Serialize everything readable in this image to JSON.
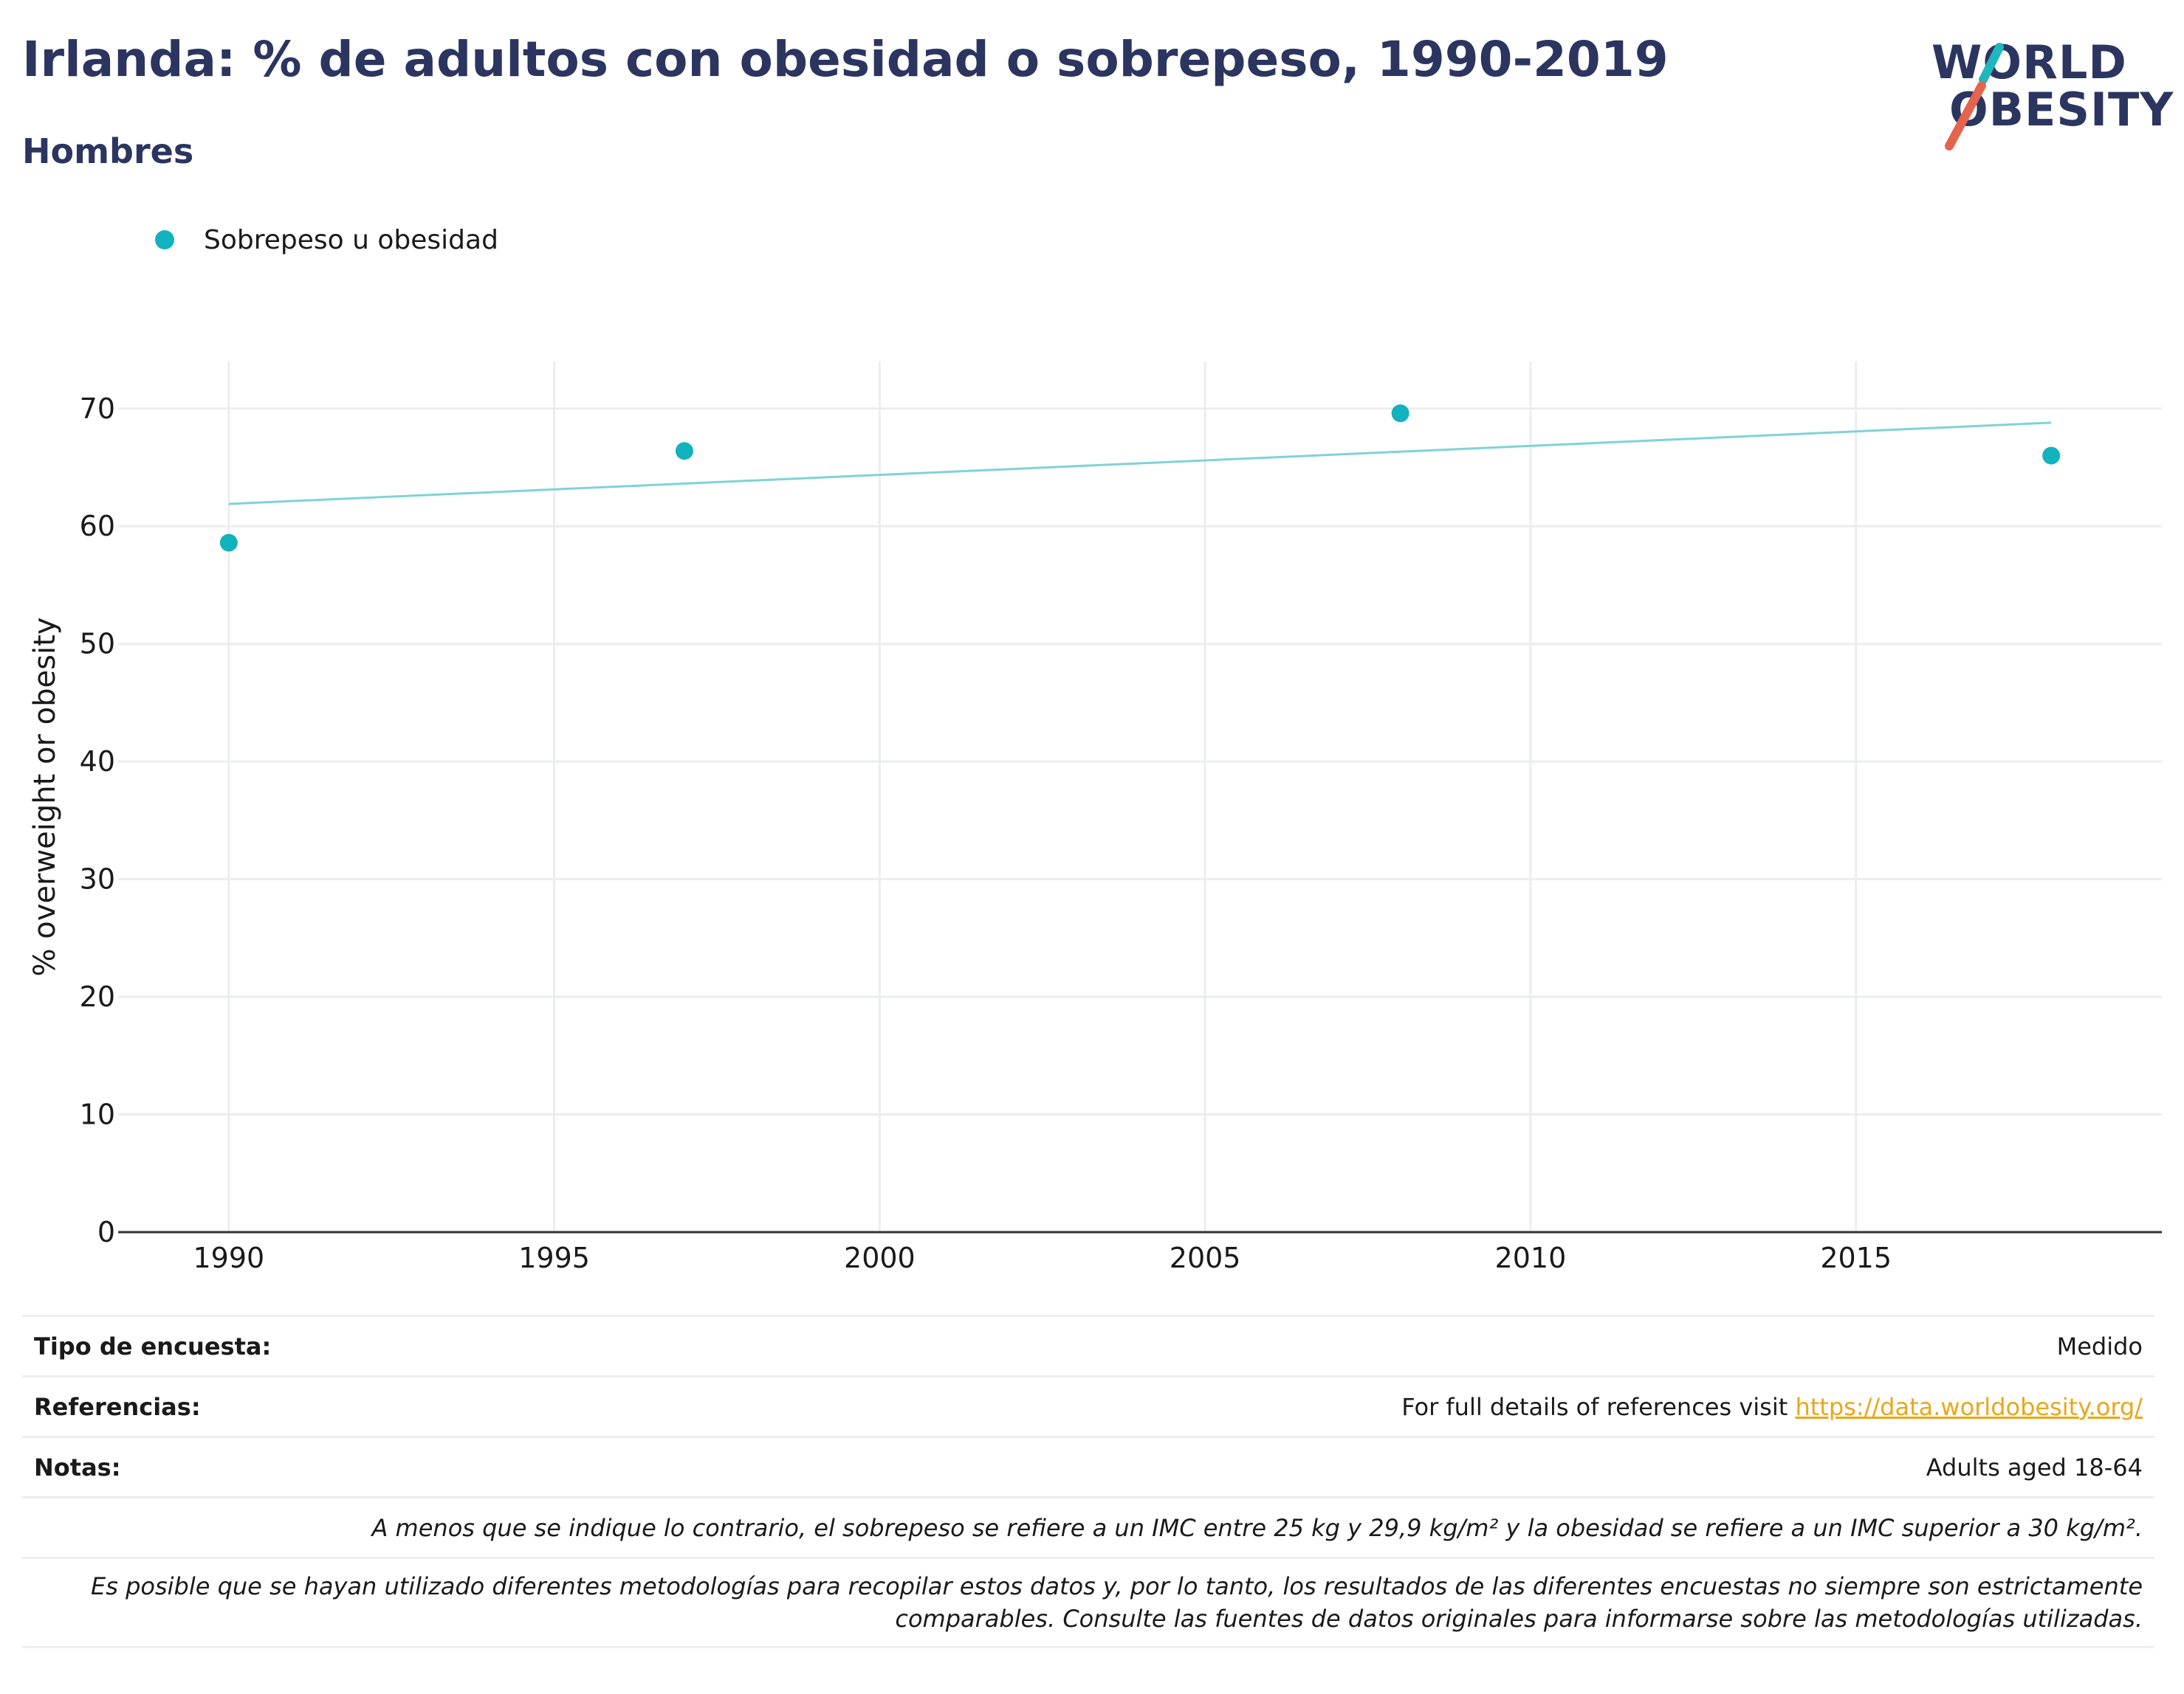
{
  "header": {
    "title": "Irlanda: % de adultos con obesidad o sobrepeso, 1990-2019",
    "subtitle": "Hombres"
  },
  "logo": {
    "line1": "WORLD",
    "line2": "OBESITY",
    "accent_teal": "#1fb6bd",
    "accent_red": "#e4644d"
  },
  "colors": {
    "title": "#2b3560",
    "series": "#12b2be",
    "trend": "#7fd3d6",
    "link": "#e9a719"
  },
  "legend": {
    "items": [
      {
        "label": "Sobrepeso u obesidad",
        "color": "#12b2be"
      }
    ],
    "placement": "top-left"
  },
  "chart_data": {
    "type": "scatter",
    "xlabel": "",
    "ylabel": "% overweight or obesity",
    "xlim": [
      1988.3,
      2019.7
    ],
    "ylim": [
      0,
      74
    ],
    "xticks": [
      1990,
      1995,
      2000,
      2005,
      2010,
      2015
    ],
    "yticks": [
      0,
      10,
      20,
      30,
      40,
      50,
      60,
      70
    ],
    "grid": true,
    "series": [
      {
        "name": "Sobrepeso u obesidad",
        "points": [
          {
            "x": 1990,
            "y": 58.6
          },
          {
            "x": 1997,
            "y": 66.4
          },
          {
            "x": 2008,
            "y": 69.6
          },
          {
            "x": 2018,
            "y": 66.0
          }
        ]
      }
    ],
    "trendline": {
      "x": [
        1990,
        2018
      ],
      "y": [
        61.9,
        68.8
      ]
    }
  },
  "info": {
    "survey_type_label": "Tipo de encuesta:",
    "survey_type_value": "Medido",
    "references_label": "Referencias:",
    "references_text": "For full details of references visit ",
    "references_link": "https://data.worldobesity.org/",
    "notes_label": "Notas:",
    "notes_value": "Adults aged 18-64",
    "note_bmi": "A menos que se indique lo contrario, el sobrepeso se refiere a un IMC entre 25 kg y 29,9 kg/m² y la obesidad se refiere a un IMC superior a 30 kg/m².",
    "note_methods_line1": "Es posible que se hayan utilizado diferentes metodologías para recopilar estos datos y, por lo tanto, los resultados de las diferentes encuestas no siempre son estrictamente",
    "note_methods_line2": "comparables. Consulte las fuentes de datos originales para informarse sobre las metodologías utilizadas."
  }
}
